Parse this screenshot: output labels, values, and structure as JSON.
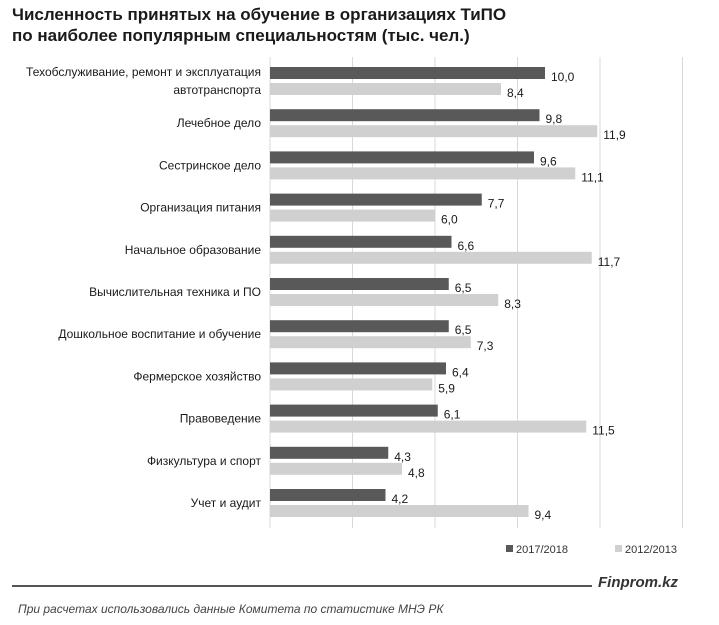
{
  "title": "Численность  принятых на обучение в организациях ТиПО\nпо наиболее популярным  специальностям  (тыс. чел.)",
  "brand": "Finprom.kz",
  "source": "При расчетах использовались данные Комитета по статистике МНЭ РК",
  "colors": {
    "s2017": "#595959",
    "s2012": "#d0d0d0",
    "grid": "#d9d9d9"
  },
  "chart_data": {
    "type": "bar",
    "orientation": "horizontal",
    "categories": [
      [
        "Техобслуживание, ремонт и эксплуатация",
        "автотранспорта"
      ],
      [
        "Лечебное дело"
      ],
      [
        "Сестринское дело"
      ],
      [
        "Организация питания"
      ],
      [
        "Начальное образование"
      ],
      [
        "Вычислительная техника и ПО"
      ],
      [
        "Дошкольное воспитание и обучение"
      ],
      [
        "Фермерское хозяйство"
      ],
      [
        "Правоведение"
      ],
      [
        "Физкультура и спорт"
      ],
      [
        "Учет и аудит"
      ]
    ],
    "series": [
      {
        "name": "2017/2018",
        "values": [
          10.0,
          9.8,
          9.6,
          7.7,
          6.6,
          6.5,
          6.5,
          6.4,
          6.1,
          4.3,
          4.2
        ],
        "labels": [
          "10,0",
          "9,8",
          "9,6",
          "7,7",
          "6,6",
          "6,5",
          "6,5",
          "6,4",
          "6,1",
          "4,3",
          "4,2"
        ]
      },
      {
        "name": "2012/2013",
        "values": [
          8.4,
          11.9,
          11.1,
          6.0,
          11.7,
          8.3,
          7.3,
          5.9,
          11.5,
          4.8,
          9.4
        ],
        "labels": [
          "8,4",
          "11,9",
          "11,1",
          "6,0",
          "11,7",
          "8,3",
          "7,3",
          "5,9",
          "11,5",
          "4,8",
          "9,4"
        ]
      }
    ],
    "xlim": [
      0,
      15
    ],
    "grid": true,
    "legend_position": "bottom-right"
  }
}
